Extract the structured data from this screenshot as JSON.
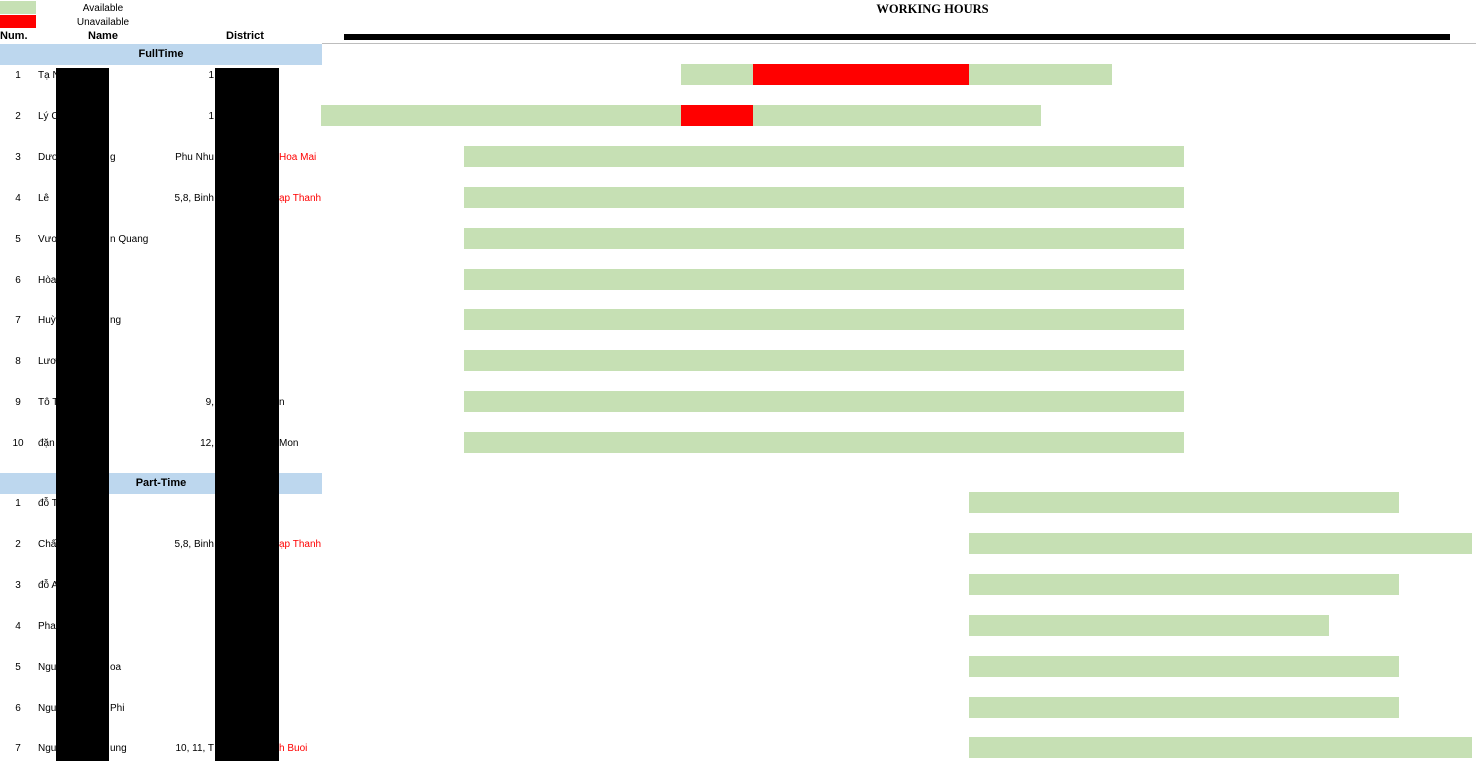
{
  "legend": {
    "available_label": "Available",
    "unavailable_label": "Unavailable",
    "available_color": "#c6e0b4",
    "unavailable_color": "#ff0000"
  },
  "headers": {
    "num": "Num.",
    "name": "Name",
    "district": "District"
  },
  "title": "WORKING HOURS",
  "sections": {
    "fulltime": {
      "label": "FullTime",
      "rows": [
        {
          "num": "1",
          "name": "Tạ N",
          "district_left": "1",
          "district_right": "",
          "bars": [
            [
              "available",
              0.334,
              0.734
            ],
            [
              "unavailable",
              0.401,
              0.601
            ]
          ]
        },
        {
          "num": "2",
          "name": "Lý C",
          "district_left": "1",
          "district_right": "",
          "bars": [
            [
              "available",
              0.0,
              0.668
            ],
            [
              "unavailable",
              0.334,
              0.401
            ]
          ]
        },
        {
          "num": "3",
          "name": "Dươ",
          "name_tail": "g",
          "district_left": "Phu Nhu",
          "district_right": "Hoa Mai",
          "bars": [
            [
              "available",
              0.133,
              0.801
            ]
          ]
        },
        {
          "num": "4",
          "name": "Lê ",
          "district_left": "5,8, Binh",
          "district_right": "ạp Thanh",
          "bars": [
            [
              "available",
              0.133,
              0.801
            ]
          ]
        },
        {
          "num": "5",
          "name": "Vươ",
          "name_tail": "n Quang",
          "district_left": "",
          "district_right": "",
          "bars": [
            [
              "available",
              0.133,
              0.801
            ]
          ]
        },
        {
          "num": "6",
          "name": "Hòa",
          "district_left": "",
          "district_right": "",
          "bars": [
            [
              "available",
              0.133,
              0.801
            ]
          ]
        },
        {
          "num": "7",
          "name": "Huỳ",
          "name_tail": "ng",
          "district_left": "",
          "district_right": "",
          "bars": [
            [
              "available",
              0.133,
              0.801
            ]
          ]
        },
        {
          "num": "8",
          "name": "Lươ",
          "district_left": "",
          "district_right": "",
          "bars": [
            [
              "available",
              0.133,
              0.801
            ]
          ]
        },
        {
          "num": "9",
          "name": "Tô T",
          "district_left": "9,",
          "district_right_black": "n",
          "bars": [
            [
              "available",
              0.133,
              0.801
            ]
          ]
        },
        {
          "num": "10",
          "name": "đặn",
          "district_left": "12,",
          "district_right_black": "Mon",
          "bars": [
            [
              "available",
              0.133,
              0.801
            ]
          ]
        }
      ]
    },
    "parttime": {
      "label": "Part-Time",
      "rows": [
        {
          "num": "1",
          "name": "đỗ T",
          "district_left": "",
          "district_right": "",
          "bars": [
            [
              "available",
              0.601,
              1.0
            ]
          ]
        },
        {
          "num": "2",
          "name": "Chấ",
          "district_left": "5,8, Binh",
          "district_right": "ạp Thanh",
          "bars": [
            [
              "available",
              0.601,
              1.068
            ]
          ]
        },
        {
          "num": "3",
          "name": "đỗ A",
          "district_left": "",
          "district_right": "",
          "bars": [
            [
              "available",
              0.601,
              1.0
            ]
          ]
        },
        {
          "num": "4",
          "name": "Pha",
          "district_left": "",
          "district_right": "",
          "bars": [
            [
              "available",
              0.601,
              0.935
            ]
          ]
        },
        {
          "num": "5",
          "name": "Ngu",
          "name_tail": "oa",
          "district_left": "",
          "district_right": "",
          "bars": [
            [
              "available",
              0.601,
              1.0
            ]
          ]
        },
        {
          "num": "6",
          "name": "Ngu",
          "name_tail": "Phi",
          "district_left": "",
          "district_right": "",
          "bars": [
            [
              "available",
              0.601,
              1.0
            ]
          ]
        },
        {
          "num": "7",
          "name": "Ngu",
          "name_tail": "ung",
          "district_left": "10, 11, T",
          "district_right": "h Buoi",
          "bars": [
            [
              "available",
              0.601,
              1.068
            ]
          ]
        }
      ]
    }
  }
}
